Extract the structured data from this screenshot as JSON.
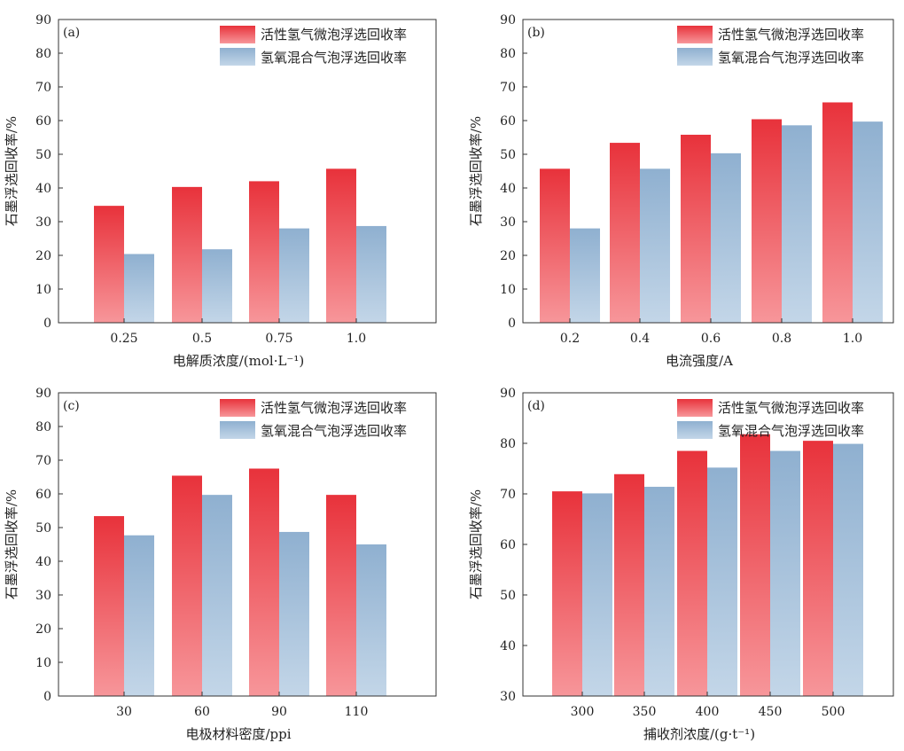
{
  "colors": {
    "red_top": "#e8323b",
    "red_bottom": "#f7969a",
    "blue_top": "#8fb0d0",
    "blue_bottom": "#c3d6e8",
    "axis": "#333333"
  },
  "legend": {
    "series_a": "活性氢气微泡浮选回收率",
    "series_b": "氢氧混合气泡浮选回收率"
  },
  "chart_data": [
    {
      "type": "bar",
      "panel": "(a)",
      "categories": [
        "0.25",
        "0.5",
        "0.75",
        "1.0"
      ],
      "series": [
        {
          "name": "活性氢气微泡浮选回收率",
          "values": [
            34.7,
            40.3,
            42.0,
            45.7
          ]
        },
        {
          "name": "氢氧混合气泡浮选回收率",
          "values": [
            20.4,
            21.8,
            28.0,
            28.7
          ]
        }
      ],
      "xlabel": "电解质浓度/(mol·L⁻¹)",
      "ylabel": "石墨浮选回收率/%",
      "ylim": [
        0,
        90
      ],
      "yticks": [
        "0",
        "10",
        "20",
        "30",
        "40",
        "50",
        "60",
        "70",
        "80",
        "90"
      ]
    },
    {
      "type": "bar",
      "panel": "(b)",
      "categories": [
        "0.2",
        "0.4",
        "0.6",
        "0.8",
        "1.0"
      ],
      "series": [
        {
          "name": "活性氢气微泡浮选回收率",
          "values": [
            45.7,
            53.4,
            55.8,
            60.4,
            65.4
          ]
        },
        {
          "name": "氢氧混合气泡浮选回收率",
          "values": [
            28.0,
            45.7,
            50.3,
            58.6,
            59.7
          ]
        }
      ],
      "xlabel": "电流强度/A",
      "ylabel": "石墨浮选回收率/%",
      "ylim": [
        0,
        90
      ],
      "yticks": [
        "0",
        "10",
        "20",
        "30",
        "40",
        "50",
        "60",
        "70",
        "80",
        "90"
      ]
    },
    {
      "type": "bar",
      "panel": "(c)",
      "categories": [
        "30",
        "60",
        "90",
        "110"
      ],
      "series": [
        {
          "name": "活性氢气微泡浮选回收率",
          "values": [
            53.4,
            65.4,
            67.5,
            59.7
          ]
        },
        {
          "name": "氢氧混合气泡浮选回收率",
          "values": [
            47.7,
            59.7,
            48.7,
            45.0
          ]
        }
      ],
      "xlabel": "电极材料密度/ppi",
      "ylabel": "石墨浮选回收率/%",
      "ylim": [
        0,
        90
      ],
      "yticks": [
        "0",
        "10",
        "20",
        "30",
        "40",
        "50",
        "60",
        "70",
        "80",
        "90"
      ]
    },
    {
      "type": "bar",
      "panel": "(d)",
      "categories": [
        "300",
        "350",
        "400",
        "450",
        "500"
      ],
      "series": [
        {
          "name": "活性氢气微泡浮选回收率",
          "values": [
            70.5,
            73.9,
            78.5,
            81.8,
            80.5
          ]
        },
        {
          "name": "氢氧混合气泡浮选回收率",
          "values": [
            70.1,
            71.4,
            75.2,
            78.5,
            79.9
          ]
        }
      ],
      "xlabel": "捕收剂浓度/(g·t⁻¹)",
      "ylabel": "石墨浮选回收率/%",
      "ylim": [
        30,
        90
      ],
      "yticks": [
        "30",
        "40",
        "50",
        "60",
        "70",
        "80",
        "90"
      ]
    }
  ]
}
